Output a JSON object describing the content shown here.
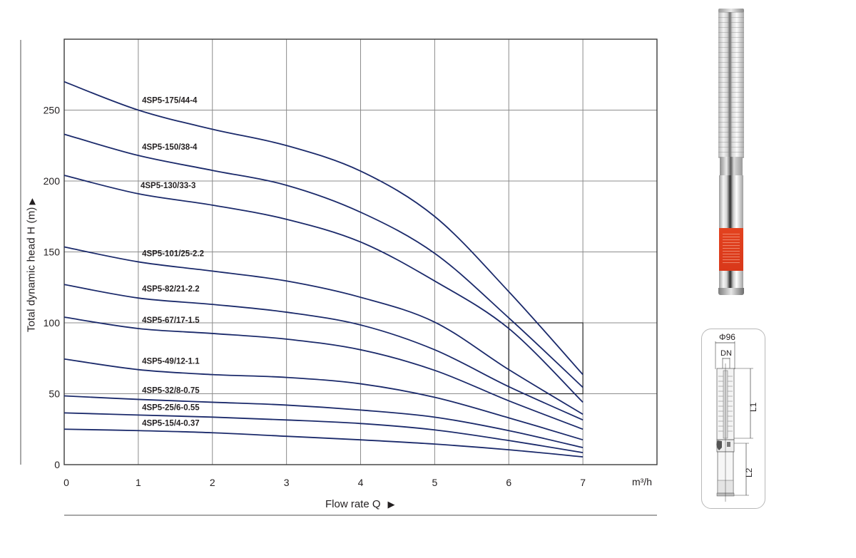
{
  "chart_data": {
    "type": "line",
    "title": "",
    "xlabel": "Flow rate Q",
    "xlabel_arrow": "▶",
    "x_unit": "m³/h",
    "ylabel": "Total dynamic head H (m)",
    "ylabel_arrow": "▶",
    "xlim": [
      0,
      8
    ],
    "ylim": [
      0,
      300
    ],
    "x_ticks": [
      0,
      1,
      2,
      3,
      4,
      5,
      6,
      7
    ],
    "y_ticks": [
      0,
      50,
      100,
      150,
      200,
      250
    ],
    "grid": true,
    "line_color": "#1b2a6b",
    "x": [
      0,
      1,
      2,
      3,
      4,
      5,
      6,
      7
    ],
    "series": [
      {
        "name": "4SP5-175/44-4",
        "values": [
          270,
          250,
          236.5,
          225,
          207,
          175,
          122,
          63.5
        ],
        "label_at": [
          1.05,
          253
        ]
      },
      {
        "name": "4SP5-150/38-4",
        "values": [
          233,
          218,
          207.5,
          197,
          178,
          149,
          103.5,
          54.5
        ],
        "label_at": [
          1.05,
          220
        ]
      },
      {
        "name": "4SP5-130/33-3",
        "values": [
          204,
          191,
          183,
          173,
          157,
          129.5,
          96,
          44
        ],
        "label_at": [
          1.03,
          193
        ]
      },
      {
        "name": "4SP5-101/25-2.2",
        "values": [
          153.5,
          143,
          136.5,
          129.5,
          118,
          100.5,
          67,
          35.5
        ],
        "label_at": [
          1.05,
          145
        ]
      },
      {
        "name": "4SP5-82/21-2.2",
        "values": [
          127,
          117.5,
          113,
          107.5,
          98.5,
          81,
          55,
          31.5
        ],
        "label_at": [
          1.05,
          120
        ]
      },
      {
        "name": "4SP5-67/17-1.5",
        "values": [
          104,
          96,
          92.5,
          88.5,
          81,
          66.5,
          45,
          25
        ],
        "label_at": [
          1.05,
          98
        ]
      },
      {
        "name": "4SP5-49/12-1.1",
        "values": [
          74.5,
          67,
          63.5,
          61.5,
          57,
          47.5,
          33,
          17.5
        ],
        "label_at": [
          1.05,
          69
        ]
      },
      {
        "name": "4SP5-32/8-0.75",
        "values": [
          48.5,
          46,
          44,
          42,
          38.5,
          33.5,
          24,
          12
        ],
        "label_at": [
          1.05,
          48.5
        ]
      },
      {
        "name": "4SP5-25/6-0.55",
        "values": [
          36.5,
          35,
          33.5,
          31.5,
          29,
          24.5,
          17,
          8.5
        ],
        "label_at": [
          1.05,
          36.5
        ]
      },
      {
        "name": "4SP5-15/4-0.37",
        "values": [
          25,
          24,
          22.5,
          20,
          17.5,
          14.5,
          10.5,
          5.5
        ],
        "label_at": [
          1.05,
          25.5
        ]
      }
    ],
    "annotations": [
      {
        "type": "rectangle",
        "x0": 6,
        "x1": 7,
        "y0": 50,
        "y1": 100
      }
    ]
  },
  "figure": {
    "dimension_drawing": {
      "diameter_label": "Φ96",
      "outlet_label": "DN",
      "length1_label": "L1",
      "length2_label": "L2"
    },
    "product_photo": "submersible-pump-photo"
  }
}
